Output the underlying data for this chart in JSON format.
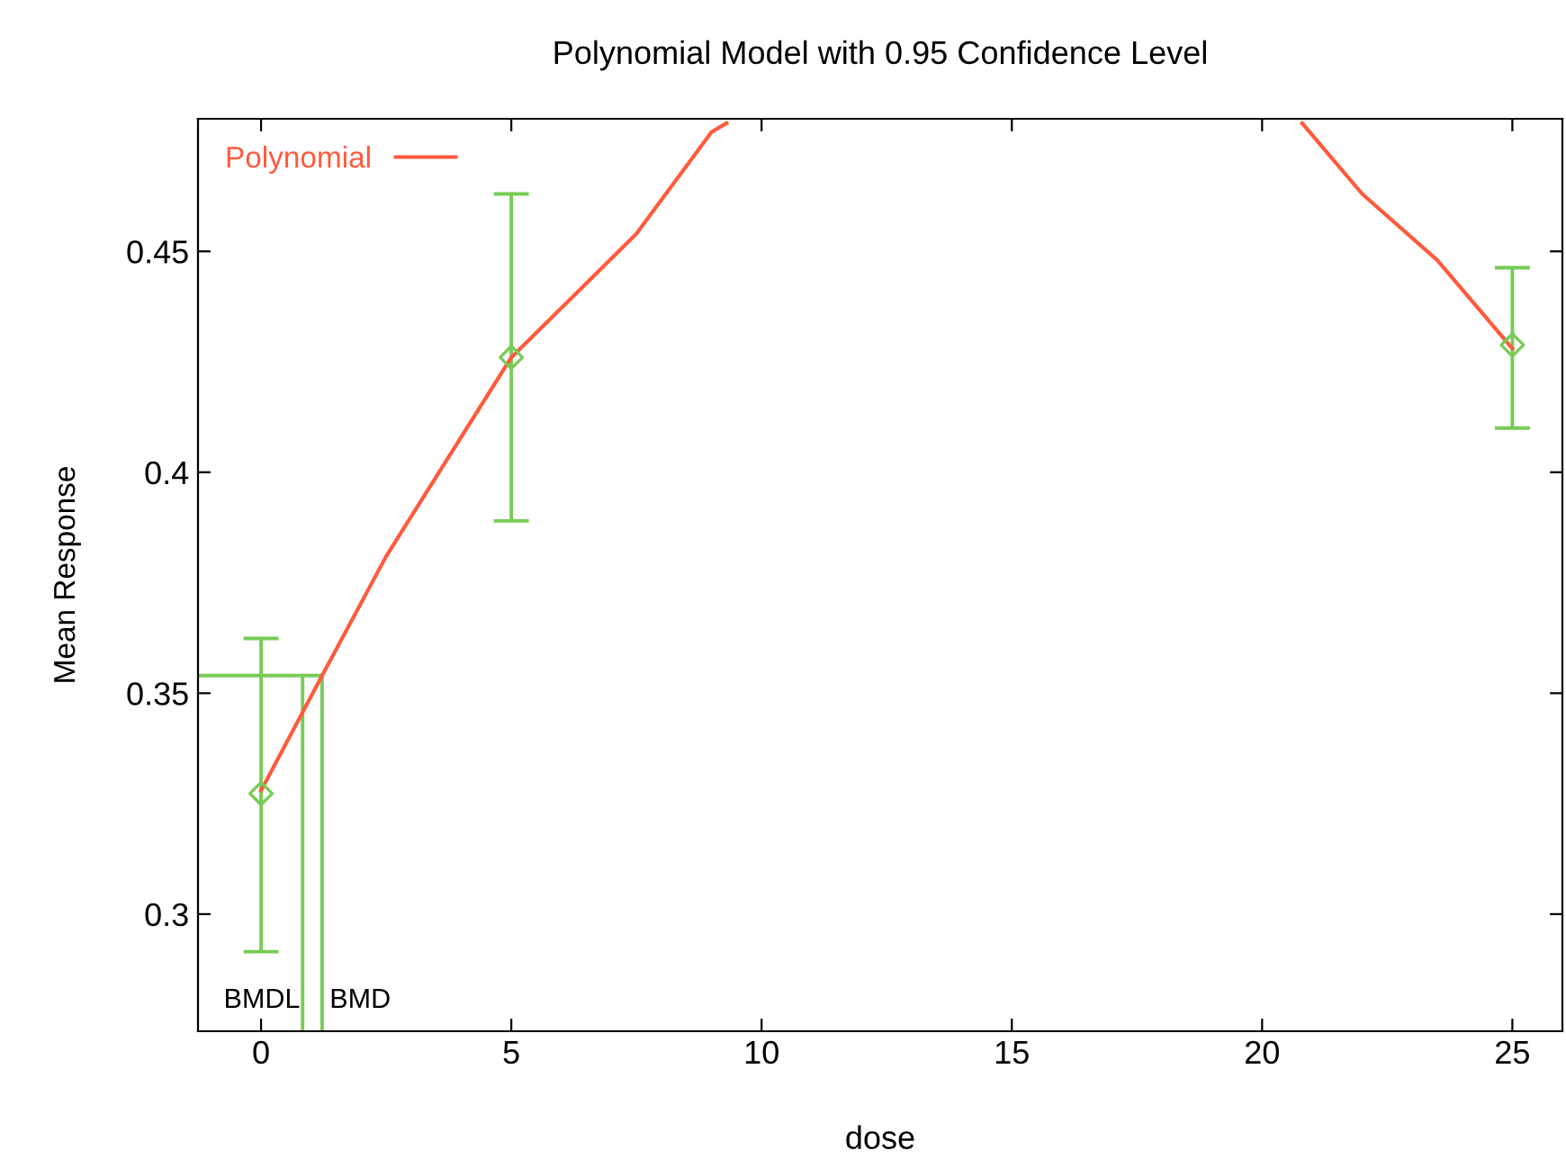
{
  "chart_data": {
    "type": "scatter",
    "title": "Polynomial Model with 0.95 Confidence Level",
    "xlabel": "dose",
    "ylabel": "Mean Response",
    "xlim": [
      -1.26,
      26.0
    ],
    "ylim": [
      0.2735,
      0.48
    ],
    "xticks": [
      0,
      5,
      10,
      15,
      20,
      25
    ],
    "yticks": [
      0.3,
      0.35,
      0.4,
      0.45
    ],
    "grid": false,
    "legend": "top left",
    "series": [
      {
        "color": "#77cc55",
        "marker": "diamond",
        "x": [
          0,
          5,
          25
        ],
        "values": [
          0.3273,
          0.426,
          0.4288
        ],
        "errors": [
          [
            0.2915,
            0.3624
          ],
          [
            0.389,
            0.463
          ],
          [
            0.41,
            0.4463
          ]
        ]
      },
      {
        "type": "line",
        "name": "Polynomial",
        "color": "#ff5a3c",
        "marker": "none",
        "line_style": "solid",
        "x": [
          0,
          1.22,
          2.5,
          5,
          7.5,
          9,
          9.3,
          15,
          20.8,
          22,
          23.5,
          25
        ],
        "values": [
          0.328,
          0.354,
          0.381,
          0.426,
          0.454,
          0.477,
          0.479,
          null,
          0.479,
          0.463,
          0.448,
          0.428
        ]
      }
    ],
    "ref_lines": [
      {
        "axis": "x",
        "value": 0.83,
        "label": "BMDL",
        "color": "#77cc55"
      },
      {
        "axis": "x",
        "value": 1.22,
        "label": "BMD",
        "color": "#77cc55"
      },
      {
        "axis": "y",
        "value": 0.354,
        "color": "#77cc55"
      }
    ]
  }
}
